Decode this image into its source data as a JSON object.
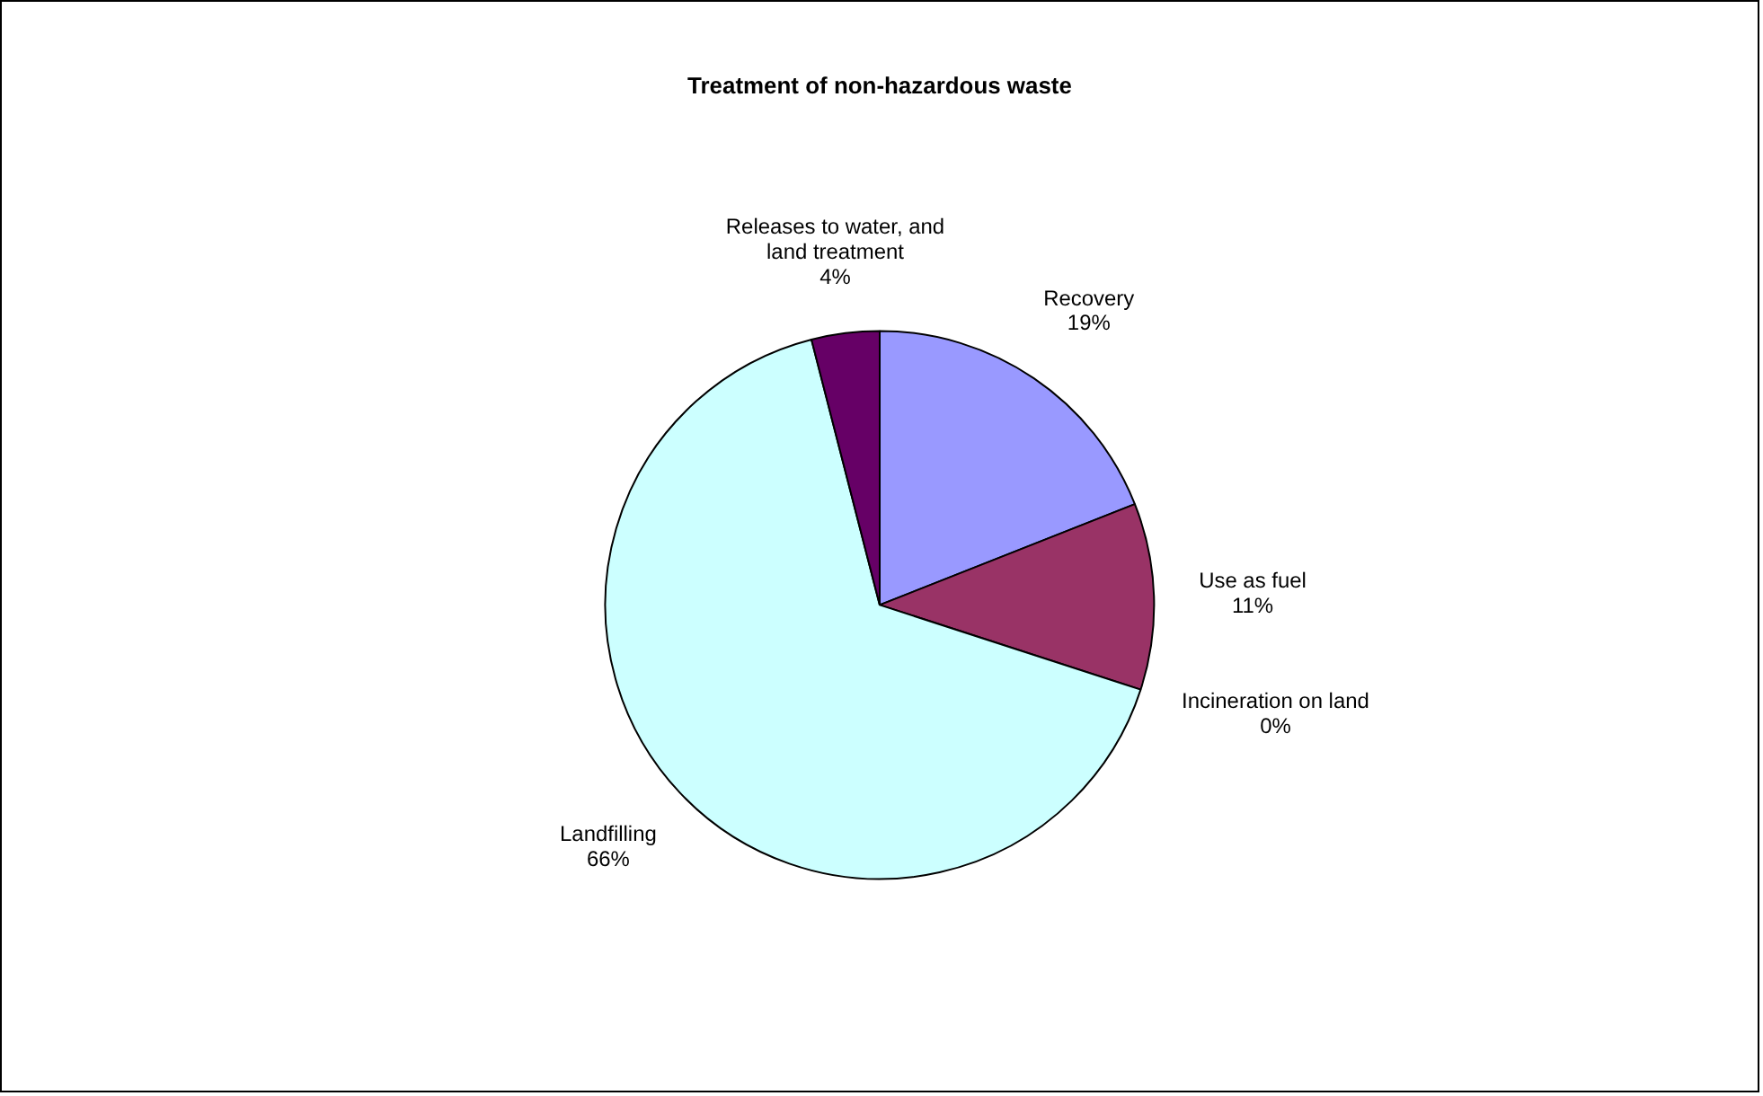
{
  "chart_data": {
    "type": "pie",
    "title": "Treatment of non-hazardous waste",
    "categories": [
      "Recovery",
      "Use as fuel",
      "Incineration on land",
      "Landfilling",
      "Releases to water, and land treatment"
    ],
    "values": [
      19,
      11,
      0,
      66,
      4
    ],
    "value_labels": [
      "19%",
      "11%",
      "0%",
      "66%",
      "4%"
    ],
    "colors": [
      "#9999ff",
      "#993366",
      "#ffffcc",
      "#ccffff",
      "#660066"
    ],
    "legend": false
  }
}
